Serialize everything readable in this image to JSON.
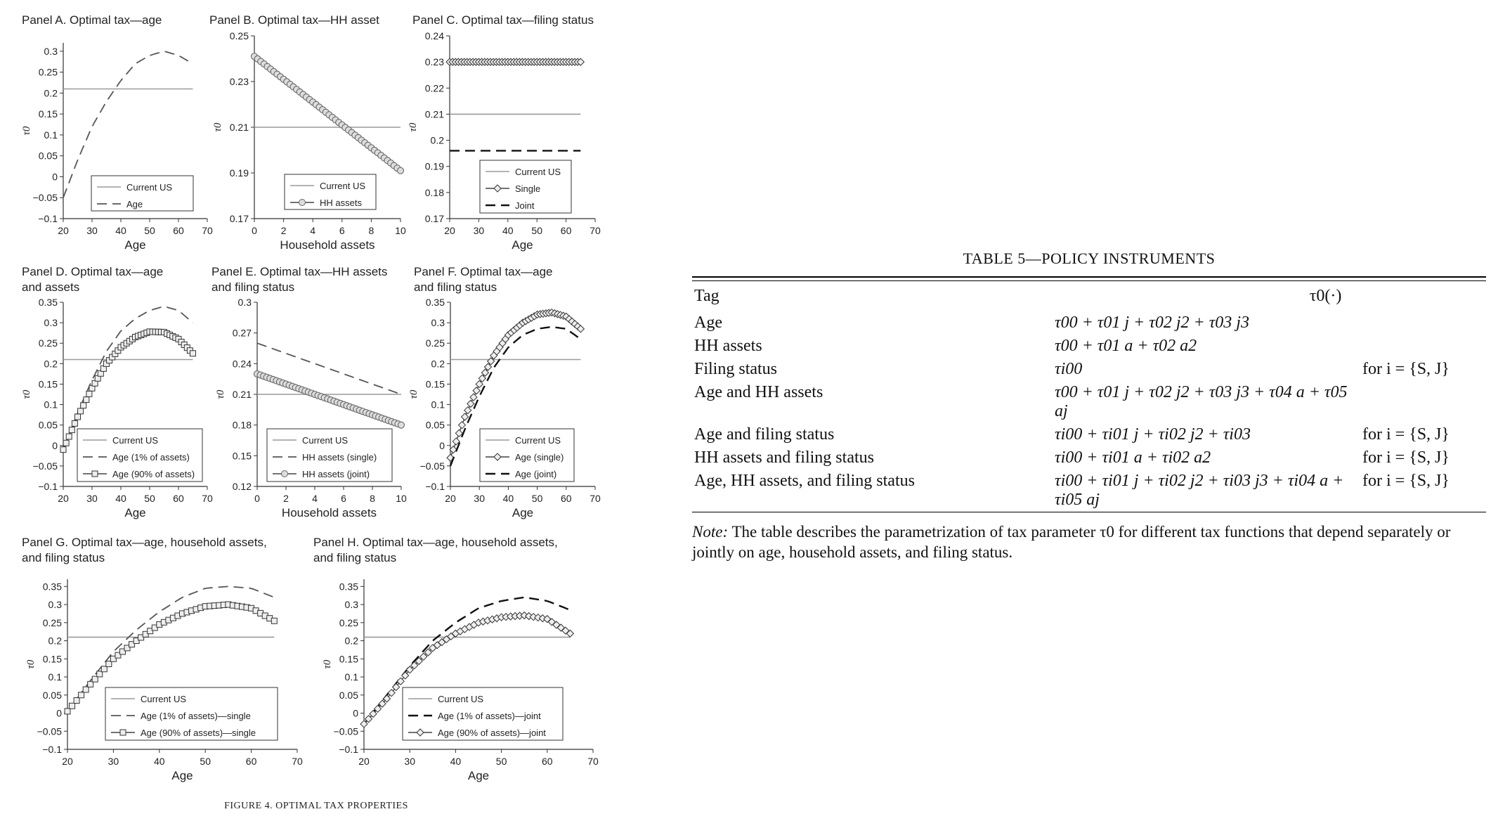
{
  "figure": {
    "caption": "FIGURE 4. OPTIMAL TAX PROPERTIES",
    "panels": [
      {
        "id": "A",
        "title_lines": [
          "Panel A. Optimal tax—age"
        ],
        "xlabel": "Age",
        "ylabel": "τ0",
        "xlim": [
          20,
          70
        ],
        "xticks": [
          "20",
          "30",
          "40",
          "50",
          "60",
          "70"
        ],
        "ylim": [
          -0.1,
          0.32
        ],
        "yticks": [
          "−0.1",
          "−0.05",
          "0",
          "0.05",
          "0.1",
          "0.15",
          "0.2",
          "0.25",
          "0.3"
        ],
        "legend": [
          "Current US",
          "Age"
        ]
      },
      {
        "id": "B",
        "title_lines": [
          "Panel B. Optimal tax—HH asset"
        ],
        "xlabel": "Household assets",
        "ylabel": "τ0",
        "xlim": [
          0,
          10
        ],
        "xticks": [
          "0",
          "2",
          "4",
          "6",
          "8",
          "10"
        ],
        "ylim": [
          0.17,
          0.25
        ],
        "yticks": [
          "0.17",
          "0.19",
          "0.21",
          "0.23",
          "0.25"
        ],
        "legend": [
          "Current US",
          "HH assets"
        ]
      },
      {
        "id": "C",
        "title_lines": [
          "Panel C. Optimal tax—filing status"
        ],
        "xlabel": "Age",
        "ylabel": "τ0",
        "xlim": [
          20,
          70
        ],
        "xticks": [
          "20",
          "30",
          "40",
          "50",
          "60",
          "70"
        ],
        "ylim": [
          0.17,
          0.24
        ],
        "yticks": [
          "0.17",
          "0.18",
          "0.19",
          "0.2",
          "0.21",
          "0.22",
          "0.23",
          "0.24"
        ],
        "legend": [
          "Current US",
          "Single",
          "Joint"
        ]
      },
      {
        "id": "D",
        "title_lines": [
          "Panel D. Optimal tax—age",
          "and assets"
        ],
        "xlabel": "Age",
        "ylabel": "τ0",
        "xlim": [
          20,
          70
        ],
        "xticks": [
          "20",
          "30",
          "40",
          "50",
          "60",
          "70"
        ],
        "ylim": [
          -0.1,
          0.35
        ],
        "yticks": [
          "−0.1",
          "−0.05",
          "0",
          "0.05",
          "0.1",
          "0.15",
          "0.2",
          "0.25",
          "0.3",
          "0.35"
        ],
        "legend": [
          "Current US",
          "Age (1% of assets)",
          "Age (90% of assets)"
        ]
      },
      {
        "id": "E",
        "title_lines": [
          "Panel E. Optimal tax—HH assets",
          "and filing status"
        ],
        "xlabel": "Household assets",
        "ylabel": "τ0",
        "xlim": [
          0,
          10
        ],
        "xticks": [
          "0",
          "2",
          "4",
          "6",
          "8",
          "10"
        ],
        "ylim": [
          0.12,
          0.3
        ],
        "yticks": [
          "0.12",
          "0.15",
          "0.18",
          "0.21",
          "0.24",
          "0.27",
          "0.3"
        ],
        "legend": [
          "Current US",
          "HH assets (single)",
          "HH assets (joint)"
        ]
      },
      {
        "id": "F",
        "title_lines": [
          "Panel F. Optimal tax—age",
          "and filing status"
        ],
        "xlabel": "Age",
        "ylabel": "τ0",
        "xlim": [
          20,
          70
        ],
        "xticks": [
          "20",
          "30",
          "40",
          "50",
          "60",
          "70"
        ],
        "ylim": [
          -0.1,
          0.35
        ],
        "yticks": [
          "−0.1",
          "−0.05",
          "0",
          "0.05",
          "0.1",
          "0.15",
          "0.2",
          "0.25",
          "0.3",
          "0.35"
        ],
        "legend": [
          "Current US",
          "Age (single)",
          "Age (joint)"
        ]
      },
      {
        "id": "G",
        "title_lines": [
          "Panel G. Optimal tax—age, household assets,",
          "and filing status"
        ],
        "xlabel": "Age",
        "ylabel": "τ0",
        "xlim": [
          20,
          70
        ],
        "xticks": [
          "20",
          "30",
          "40",
          "50",
          "60",
          "70"
        ],
        "ylim": [
          -0.1,
          0.37
        ],
        "yticks": [
          "−0.1",
          "−0.05",
          "0",
          "0.05",
          "0.1",
          "0.15",
          "0.2",
          "0.25",
          "0.3",
          "0.35"
        ],
        "legend": [
          "Current US",
          "Age (1% of assets)—single",
          "Age (90% of assets)—single"
        ]
      },
      {
        "id": "H",
        "title_lines": [
          "Panel H. Optimal tax—age, household assets,",
          "and filing status"
        ],
        "xlabel": "Age",
        "ylabel": "τ0",
        "xlim": [
          20,
          70
        ],
        "xticks": [
          "20",
          "30",
          "40",
          "50",
          "60",
          "70"
        ],
        "ylim": [
          -0.1,
          0.37
        ],
        "yticks": [
          "−0.1",
          "−0.05",
          "0",
          "0.05",
          "0.1",
          "0.15",
          "0.2",
          "0.25",
          "0.3",
          "0.35"
        ],
        "legend": [
          "Current US",
          "Age (1% of assets)—joint",
          "Age (90% of assets)—joint"
        ]
      }
    ]
  },
  "chart_data": [
    {
      "panel": "A",
      "type": "line",
      "series": [
        {
          "name": "Current US",
          "style": "solid-gray",
          "x": [
            20,
            65
          ],
          "y": [
            0.21,
            0.21
          ]
        },
        {
          "name": "Age",
          "style": "dashed",
          "x": [
            20,
            25,
            30,
            35,
            40,
            45,
            50,
            55,
            60,
            65
          ],
          "y": [
            -0.05,
            0.04,
            0.12,
            0.18,
            0.23,
            0.27,
            0.29,
            0.3,
            0.29,
            0.27
          ]
        }
      ]
    },
    {
      "panel": "B",
      "type": "line",
      "series": [
        {
          "name": "Current US",
          "style": "solid-gray",
          "x": [
            0,
            10
          ],
          "y": [
            0.21,
            0.21
          ]
        },
        {
          "name": "HH assets",
          "style": "circle-markers",
          "x": [
            0,
            10
          ],
          "y": [
            0.241,
            0.191
          ]
        }
      ]
    },
    {
      "panel": "C",
      "type": "line",
      "series": [
        {
          "name": "Current US",
          "style": "solid-gray",
          "x": [
            20,
            65
          ],
          "y": [
            0.21,
            0.21
          ]
        },
        {
          "name": "Single",
          "style": "diamond-markers",
          "x": [
            20,
            65
          ],
          "y": [
            0.23,
            0.23
          ]
        },
        {
          "name": "Joint",
          "style": "dashed-thick",
          "x": [
            20,
            65
          ],
          "y": [
            0.196,
            0.196
          ]
        }
      ]
    },
    {
      "panel": "D",
      "type": "line",
      "series": [
        {
          "name": "Current US",
          "style": "solid-gray",
          "x": [
            20,
            65
          ],
          "y": [
            0.21,
            0.21
          ]
        },
        {
          "name": "Age (1% of assets)",
          "style": "dashed",
          "x": [
            20,
            25,
            30,
            35,
            40,
            45,
            50,
            55,
            60,
            65
          ],
          "y": [
            -0.01,
            0.08,
            0.16,
            0.23,
            0.28,
            0.31,
            0.33,
            0.34,
            0.33,
            0.3
          ]
        },
        {
          "name": "Age (90% of assets)",
          "style": "square-markers",
          "x": [
            20,
            25,
            30,
            35,
            40,
            45,
            50,
            55,
            60,
            65
          ],
          "y": [
            -0.01,
            0.07,
            0.14,
            0.2,
            0.24,
            0.265,
            0.278,
            0.277,
            0.26,
            0.225
          ]
        }
      ]
    },
    {
      "panel": "E",
      "type": "line",
      "series": [
        {
          "name": "Current US",
          "style": "solid-gray",
          "x": [
            0,
            10
          ],
          "y": [
            0.21,
            0.21
          ]
        },
        {
          "name": "HH assets (single)",
          "style": "dashed",
          "x": [
            0,
            10
          ],
          "y": [
            0.26,
            0.21
          ]
        },
        {
          "name": "HH assets (joint)",
          "style": "circle-markers",
          "x": [
            0,
            10
          ],
          "y": [
            0.23,
            0.18
          ]
        }
      ]
    },
    {
      "panel": "F",
      "type": "line",
      "series": [
        {
          "name": "Current US",
          "style": "solid-gray",
          "x": [
            20,
            65
          ],
          "y": [
            0.21,
            0.21
          ]
        },
        {
          "name": "Age (single)",
          "style": "diamond-markers",
          "x": [
            20,
            25,
            30,
            35,
            40,
            45,
            50,
            55,
            60,
            65
          ],
          "y": [
            -0.03,
            0.07,
            0.15,
            0.22,
            0.27,
            0.3,
            0.32,
            0.325,
            0.315,
            0.285
          ]
        },
        {
          "name": "Age (joint)",
          "style": "dashed-thick",
          "x": [
            20,
            25,
            30,
            35,
            40,
            45,
            50,
            55,
            60,
            65
          ],
          "y": [
            -0.05,
            0.04,
            0.12,
            0.19,
            0.24,
            0.27,
            0.285,
            0.29,
            0.285,
            0.26
          ]
        }
      ]
    },
    {
      "panel": "G",
      "type": "line",
      "series": [
        {
          "name": "Current US",
          "style": "solid-gray",
          "x": [
            20,
            65
          ],
          "y": [
            0.21,
            0.21
          ]
        },
        {
          "name": "Age (1% of assets)—single",
          "style": "dashed",
          "x": [
            20,
            25,
            30,
            35,
            40,
            45,
            50,
            55,
            60,
            65
          ],
          "y": [
            0.005,
            0.09,
            0.17,
            0.23,
            0.28,
            0.32,
            0.345,
            0.35,
            0.345,
            0.32
          ]
        },
        {
          "name": "Age (90% of assets)—single",
          "style": "square-markers",
          "x": [
            20,
            25,
            30,
            35,
            40,
            45,
            50,
            55,
            60,
            65
          ],
          "y": [
            0.005,
            0.08,
            0.15,
            0.2,
            0.245,
            0.275,
            0.295,
            0.3,
            0.29,
            0.255
          ]
        }
      ]
    },
    {
      "panel": "H",
      "type": "line",
      "series": [
        {
          "name": "Current US",
          "style": "solid-gray",
          "x": [
            20,
            65
          ],
          "y": [
            0.21,
            0.21
          ]
        },
        {
          "name": "Age (1% of assets)—joint",
          "style": "dashed-thick",
          "x": [
            20,
            25,
            30,
            35,
            40,
            45,
            50,
            55,
            60,
            65
          ],
          "y": [
            -0.03,
            0.05,
            0.13,
            0.2,
            0.25,
            0.29,
            0.31,
            0.32,
            0.31,
            0.285
          ]
        },
        {
          "name": "Age (90% of assets)—joint",
          "style": "diamond-markers",
          "x": [
            20,
            25,
            30,
            35,
            40,
            45,
            50,
            55,
            60,
            65
          ],
          "y": [
            -0.03,
            0.04,
            0.12,
            0.18,
            0.22,
            0.25,
            0.265,
            0.27,
            0.26,
            0.22
          ]
        }
      ]
    }
  ],
  "table": {
    "title": "TABLE 5—POLICY INSTRUMENTS",
    "header_tag": "Tag",
    "header_tau": "τ0(·)",
    "rows": [
      {
        "tag": "Age",
        "formula": "τ00 + τ01 j + τ02 j2 + τ03 j3",
        "cond": ""
      },
      {
        "tag": "HH assets",
        "formula": "τ00 + τ01 a + τ02 a2",
        "cond": ""
      },
      {
        "tag": "Filing status",
        "formula": "τi00",
        "cond": "for i = {S, J}"
      },
      {
        "tag": "Age and HH assets",
        "formula": "τ00 + τ01 j + τ02 j2 + τ03 j3 + τ04 a + τ05 aj",
        "cond": ""
      },
      {
        "tag": "Age and filing status",
        "formula": "τi00 + τi01 j + τi02 j2 + τi03",
        "cond": "for i = {S, J}"
      },
      {
        "tag": "HH assets and filing status",
        "formula": "τi00 + τi01 a + τi02 a2",
        "cond": "for i = {S, J}"
      },
      {
        "tag": "Age, HH assets, and filing status",
        "formula": "τi00 + τi01 j + τi02 j2 + τi03 j3 + τi04 a + τi05 aj",
        "cond": "for i = {S, J}"
      }
    ],
    "note_label": "Note:",
    "note_text": "The table describes the parametrization of tax parameter τ0 for different tax functions that depend separately or jointly on age, household assets, and filing status."
  }
}
